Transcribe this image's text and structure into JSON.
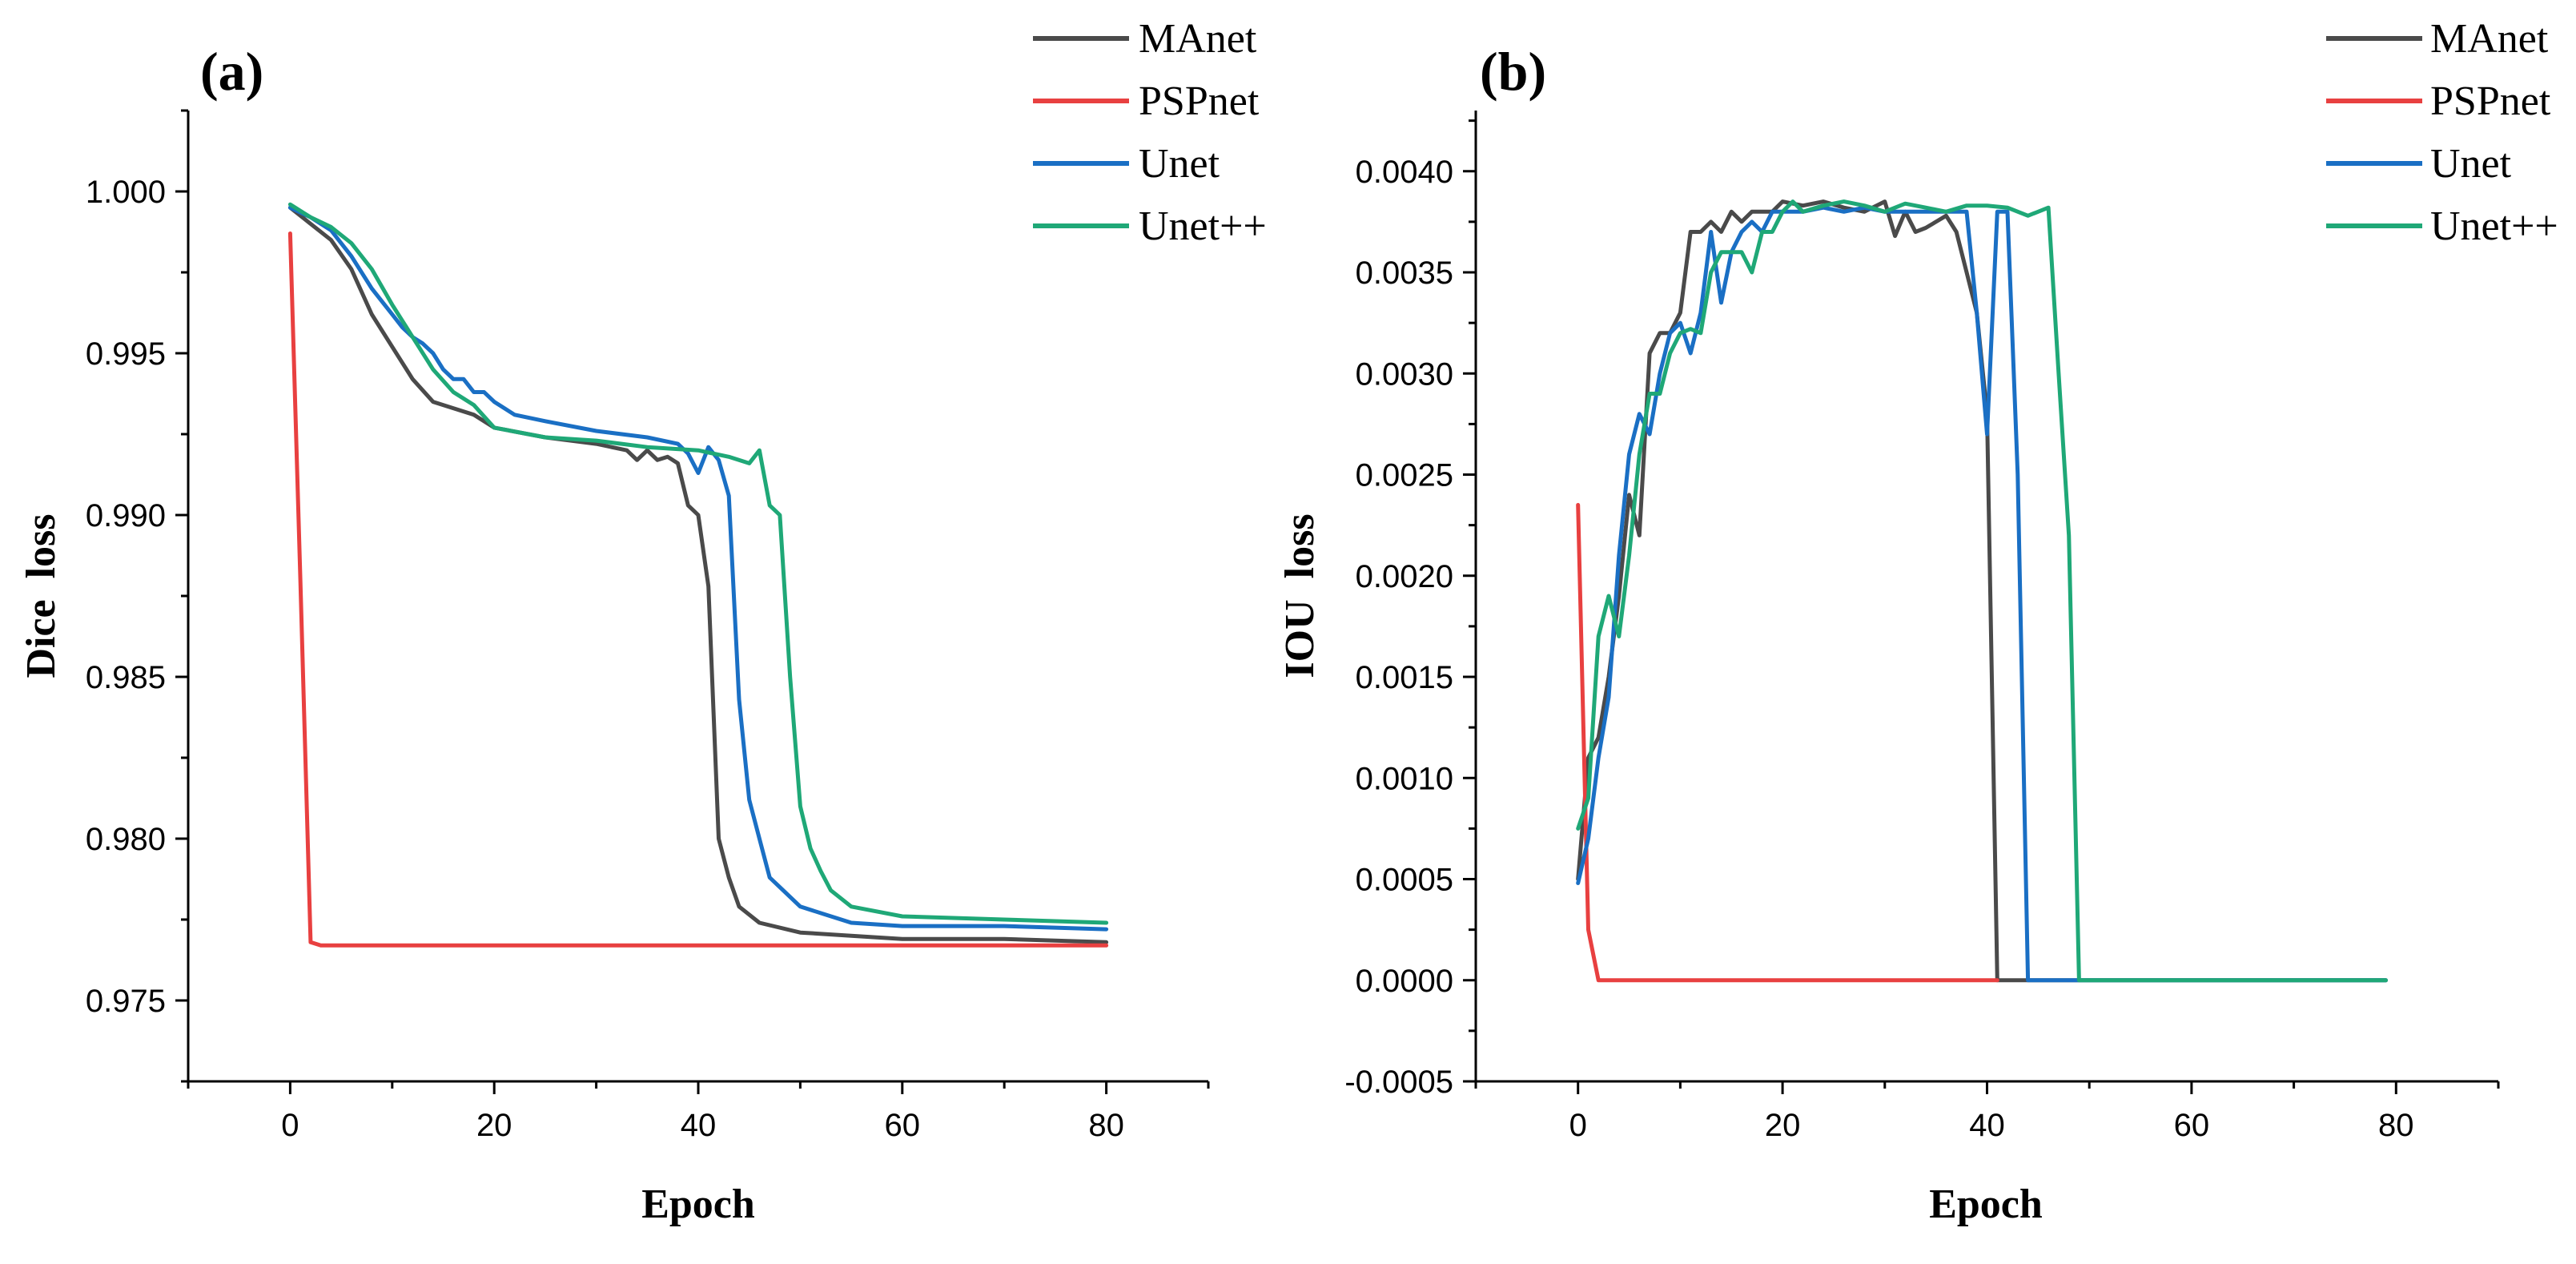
{
  "chart_data": [
    {
      "type": "line",
      "panel_label": "(a)",
      "xlabel": "Epoch",
      "ylabel": "Dice  loss",
      "xlim": [
        -10,
        90
      ],
      "ylim": [
        0.9725,
        1.0025
      ],
      "xticks": [
        0,
        20,
        40,
        60,
        80
      ],
      "xtick_labels": [
        "0",
        "20",
        "40",
        "60",
        "80"
      ],
      "yticks": [
        0.975,
        0.98,
        0.985,
        0.99,
        0.995,
        1.0
      ],
      "ytick_labels": [
        "0.975",
        "0.980",
        "0.985",
        "0.990",
        "0.995",
        "1.000"
      ],
      "legend_position": "top-right, outside plot",
      "series": [
        {
          "name": "MAnet",
          "color": "#4a4a4a",
          "points": [
            [
              0,
              0.9995
            ],
            [
              2,
              0.999
            ],
            [
              4,
              0.9985
            ],
            [
              6,
              0.9976
            ],
            [
              8,
              0.9962
            ],
            [
              10,
              0.9952
            ],
            [
              12,
              0.9942
            ],
            [
              14,
              0.9935
            ],
            [
              18,
              0.9931
            ],
            [
              20,
              0.9927
            ],
            [
              25,
              0.9924
            ],
            [
              30,
              0.9922
            ],
            [
              33,
              0.992
            ],
            [
              34,
              0.9917
            ],
            [
              35,
              0.992
            ],
            [
              36,
              0.9917
            ],
            [
              37,
              0.9918
            ],
            [
              38,
              0.9916
            ],
            [
              39,
              0.9903
            ],
            [
              40,
              0.99
            ],
            [
              41,
              0.9878
            ],
            [
              42,
              0.98
            ],
            [
              43,
              0.9788
            ],
            [
              44,
              0.9779
            ],
            [
              46,
              0.9774
            ],
            [
              50,
              0.9771
            ],
            [
              55,
              0.977
            ],
            [
              60,
              0.9769
            ],
            [
              70,
              0.9769
            ],
            [
              80,
              0.9768
            ]
          ]
        },
        {
          "name": "PSPnet",
          "color": "#e84040",
          "points": [
            [
              0,
              0.9987
            ],
            [
              1,
              0.988
            ],
            [
              2,
              0.9768
            ],
            [
              3,
              0.9767
            ],
            [
              5,
              0.9767
            ],
            [
              10,
              0.9767
            ],
            [
              20,
              0.9767
            ],
            [
              40,
              0.9767
            ],
            [
              60,
              0.9767
            ],
            [
              80,
              0.9767
            ]
          ]
        },
        {
          "name": "Unet",
          "color": "#1a6fc4",
          "points": [
            [
              0,
              0.9995
            ],
            [
              2,
              0.9992
            ],
            [
              4,
              0.9988
            ],
            [
              6,
              0.998
            ],
            [
              8,
              0.997
            ],
            [
              10,
              0.9962
            ],
            [
              11,
              0.9958
            ],
            [
              12,
              0.9955
            ],
            [
              13,
              0.9953
            ],
            [
              14,
              0.995
            ],
            [
              15,
              0.9945
            ],
            [
              16,
              0.9942
            ],
            [
              17,
              0.9942
            ],
            [
              18,
              0.9938
            ],
            [
              19,
              0.9938
            ],
            [
              20,
              0.9935
            ],
            [
              22,
              0.9931
            ],
            [
              25,
              0.9929
            ],
            [
              30,
              0.9926
            ],
            [
              35,
              0.9924
            ],
            [
              38,
              0.9922
            ],
            [
              39,
              0.9919
            ],
            [
              40,
              0.9913
            ],
            [
              41,
              0.9921
            ],
            [
              42,
              0.9917
            ],
            [
              43,
              0.9906
            ],
            [
              44,
              0.9843
            ],
            [
              45,
              0.9812
            ],
            [
              46,
              0.98
            ],
            [
              47,
              0.9788
            ],
            [
              48,
              0.9785
            ],
            [
              50,
              0.9779
            ],
            [
              55,
              0.9774
            ],
            [
              60,
              0.9773
            ],
            [
              70,
              0.9773
            ],
            [
              80,
              0.9772
            ]
          ]
        },
        {
          "name": "Unet++",
          "color": "#1fa877",
          "points": [
            [
              0,
              0.9996
            ],
            [
              2,
              0.9992
            ],
            [
              4,
              0.9989
            ],
            [
              6,
              0.9984
            ],
            [
              8,
              0.9976
            ],
            [
              10,
              0.9965
            ],
            [
              12,
              0.9955
            ],
            [
              14,
              0.9945
            ],
            [
              16,
              0.9938
            ],
            [
              18,
              0.9934
            ],
            [
              20,
              0.9927
            ],
            [
              25,
              0.9924
            ],
            [
              30,
              0.9923
            ],
            [
              35,
              0.9921
            ],
            [
              40,
              0.992
            ],
            [
              43,
              0.9918
            ],
            [
              45,
              0.9916
            ],
            [
              46,
              0.992
            ],
            [
              47,
              0.9903
            ],
            [
              48,
              0.99
            ],
            [
              49,
              0.985
            ],
            [
              50,
              0.981
            ],
            [
              51,
              0.9797
            ],
            [
              52,
              0.979
            ],
            [
              53,
              0.9784
            ],
            [
              55,
              0.9779
            ],
            [
              60,
              0.9776
            ],
            [
              70,
              0.9775
            ],
            [
              80,
              0.9774
            ]
          ]
        }
      ]
    },
    {
      "type": "line",
      "panel_label": "(b)",
      "xlabel": "Epoch",
      "ylabel": "IOU  loss",
      "xlim": [
        -10,
        90
      ],
      "ylim": [
        -0.0005,
        0.0043
      ],
      "xticks": [
        0,
        20,
        40,
        60,
        80
      ],
      "xtick_labels": [
        "0",
        "20",
        "40",
        "60",
        "80"
      ],
      "yticks": [
        -0.0005,
        0.0,
        0.0005,
        0.001,
        0.0015,
        0.002,
        0.0025,
        0.003,
        0.0035,
        0.004
      ],
      "ytick_labels": [
        "-0.0005",
        "0.0000",
        "0.0005",
        "0.0010",
        "0.0015",
        "0.0020",
        "0.0025",
        "0.0030",
        "0.0035",
        "0.0040"
      ],
      "legend_position": "top-right, outside plot",
      "series": [
        {
          "name": "MAnet",
          "color": "#4a4a4a",
          "points": [
            [
              0,
              0.0005
            ],
            [
              1,
              0.0011
            ],
            [
              2,
              0.0012
            ],
            [
              3,
              0.0015
            ],
            [
              4,
              0.0019
            ],
            [
              5,
              0.0024
            ],
            [
              6,
              0.0022
            ],
            [
              7,
              0.0031
            ],
            [
              8,
              0.0032
            ],
            [
              9,
              0.0032
            ],
            [
              10,
              0.0033
            ],
            [
              11,
              0.0037
            ],
            [
              12,
              0.0037
            ],
            [
              13,
              0.00375
            ],
            [
              14,
              0.0037
            ],
            [
              15,
              0.0038
            ],
            [
              16,
              0.00375
            ],
            [
              17,
              0.0038
            ],
            [
              18,
              0.0038
            ],
            [
              19,
              0.0038
            ],
            [
              20,
              0.00385
            ],
            [
              22,
              0.00383
            ],
            [
              24,
              0.00385
            ],
            [
              26,
              0.00382
            ],
            [
              28,
              0.0038
            ],
            [
              30,
              0.00385
            ],
            [
              31,
              0.00368
            ],
            [
              32,
              0.0038
            ],
            [
              33,
              0.0037
            ],
            [
              34,
              0.00372
            ],
            [
              35,
              0.00375
            ],
            [
              36,
              0.00378
            ],
            [
              37,
              0.0037
            ],
            [
              38,
              0.0035
            ],
            [
              39,
              0.0033
            ],
            [
              40,
              0.0028
            ],
            [
              41,
              0.0
            ],
            [
              50,
              0.0
            ],
            [
              60,
              0.0
            ],
            [
              70,
              0.0
            ],
            [
              79,
              0.0
            ]
          ]
        },
        {
          "name": "PSPnet",
          "color": "#e84040",
          "points": [
            [
              0,
              0.00235
            ],
            [
              1,
              0.00025
            ],
            [
              2,
              0.0
            ],
            [
              5,
              0.0
            ],
            [
              10,
              0.0
            ],
            [
              20,
              0.0
            ],
            [
              30,
              0.0
            ],
            [
              41,
              0.0
            ]
          ]
        },
        {
          "name": "Unet",
          "color": "#1a6fc4",
          "points": [
            [
              0,
              0.00048
            ],
            [
              1,
              0.0007
            ],
            [
              2,
              0.0011
            ],
            [
              3,
              0.0014
            ],
            [
              4,
              0.0021
            ],
            [
              5,
              0.0026
            ],
            [
              6,
              0.0028
            ],
            [
              7,
              0.0027
            ],
            [
              8,
              0.003
            ],
            [
              9,
              0.0032
            ],
            [
              10,
              0.00325
            ],
            [
              11,
              0.0031
            ],
            [
              12,
              0.0033
            ],
            [
              13,
              0.0037
            ],
            [
              14,
              0.00335
            ],
            [
              15,
              0.0036
            ],
            [
              16,
              0.0037
            ],
            [
              17,
              0.00375
            ],
            [
              18,
              0.0037
            ],
            [
              19,
              0.0038
            ],
            [
              20,
              0.0038
            ],
            [
              22,
              0.0038
            ],
            [
              24,
              0.00382
            ],
            [
              26,
              0.0038
            ],
            [
              28,
              0.00382
            ],
            [
              30,
              0.0038
            ],
            [
              32,
              0.0038
            ],
            [
              34,
              0.0038
            ],
            [
              36,
              0.0038
            ],
            [
              38,
              0.0038
            ],
            [
              39,
              0.0033
            ],
            [
              40,
              0.0027
            ],
            [
              41,
              0.0038
            ],
            [
              42,
              0.0038
            ],
            [
              43,
              0.0025
            ],
            [
              44,
              0.0
            ],
            [
              50,
              0.0
            ],
            [
              60,
              0.0
            ],
            [
              70,
              0.0
            ],
            [
              79,
              0.0
            ]
          ]
        },
        {
          "name": "Unet++",
          "color": "#1fa877",
          "points": [
            [
              0,
              0.00075
            ],
            [
              1,
              0.0009
            ],
            [
              2,
              0.0017
            ],
            [
              3,
              0.0019
            ],
            [
              4,
              0.0017
            ],
            [
              5,
              0.0021
            ],
            [
              6,
              0.0026
            ],
            [
              7,
              0.0029
            ],
            [
              8,
              0.0029
            ],
            [
              9,
              0.0031
            ],
            [
              10,
              0.0032
            ],
            [
              11,
              0.00322
            ],
            [
              12,
              0.0032
            ],
            [
              13,
              0.0035
            ],
            [
              14,
              0.0036
            ],
            [
              15,
              0.0036
            ],
            [
              16,
              0.0036
            ],
            [
              17,
              0.0035
            ],
            [
              18,
              0.0037
            ],
            [
              19,
              0.0037
            ],
            [
              20,
              0.0038
            ],
            [
              21,
              0.00385
            ],
            [
              22,
              0.0038
            ],
            [
              24,
              0.00383
            ],
            [
              26,
              0.00385
            ],
            [
              28,
              0.00383
            ],
            [
              30,
              0.0038
            ],
            [
              32,
              0.00384
            ],
            [
              34,
              0.00382
            ],
            [
              36,
              0.0038
            ],
            [
              38,
              0.00383
            ],
            [
              40,
              0.00383
            ],
            [
              42,
              0.00382
            ],
            [
              44,
              0.00378
            ],
            [
              45,
              0.0038
            ],
            [
              46,
              0.00382
            ],
            [
              47,
              0.003
            ],
            [
              48,
              0.0022
            ],
            [
              49,
              0.0
            ],
            [
              55,
              0.0
            ],
            [
              60,
              0.0
            ],
            [
              70,
              0.0
            ],
            [
              79,
              0.0
            ]
          ]
        }
      ]
    }
  ]
}
